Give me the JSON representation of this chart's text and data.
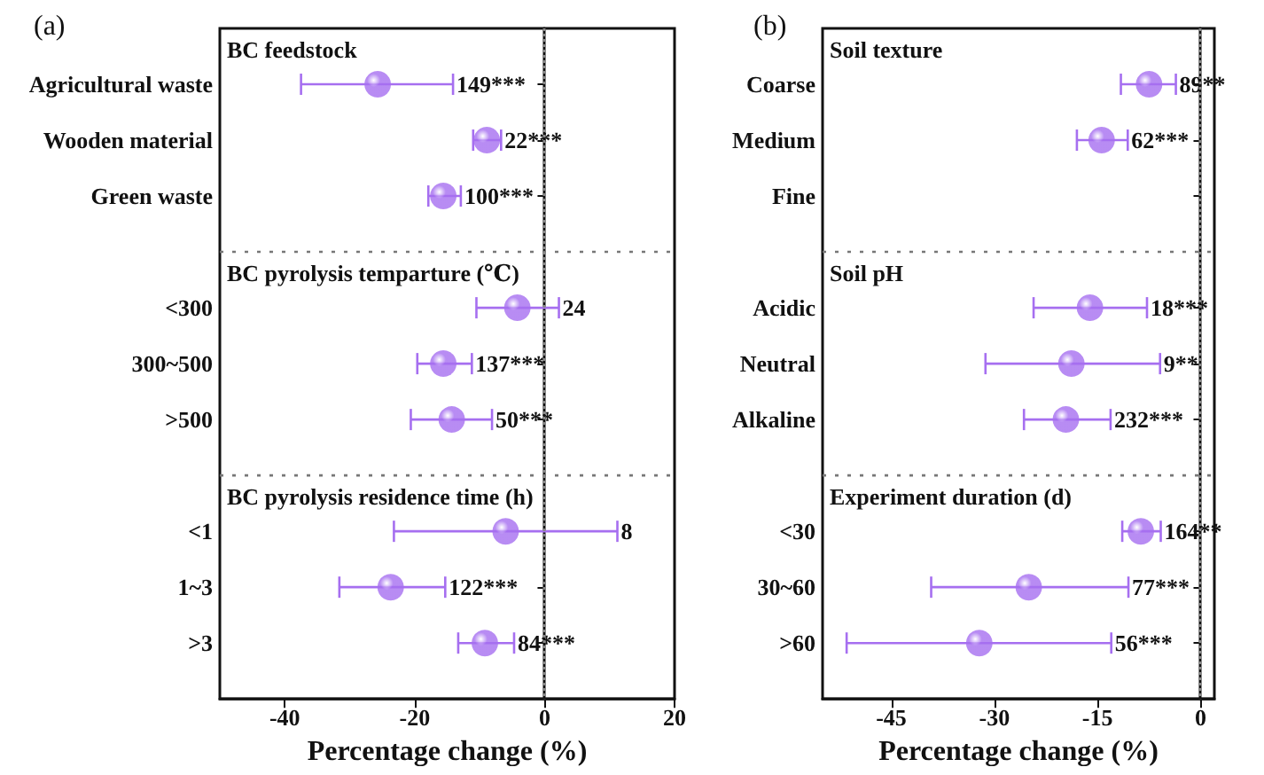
{
  "chart_data": [
    {
      "type": "scatter",
      "orientation": "horizontal",
      "title": "(a)",
      "xlabel": "Percentage change (%)",
      "categories": [
        null,
        "Agricultural waste",
        "Wooden material",
        "Green waste",
        null,
        "<300",
        "300~500",
        ">500",
        null,
        "<1",
        "1~3",
        ">3",
        null
      ],
      "annotations": [
        "BC feedstock",
        "BC pyrolysis temparture (℃)",
        "BC pyrolysis residence time (h)",
        {
          "text": "149***",
          "x": -14.1,
          "y": "Agricultural waste"
        },
        {
          "text": "22***",
          "x": -6.7,
          "y": "Wooden material"
        },
        {
          "text": "100***",
          "x": -12.9,
          "y": "Green waste"
        },
        {
          "text": "24",
          "x": 2.2,
          "y": "<300"
        },
        {
          "text": "137***",
          "x": -11.2,
          "y": "300~500"
        },
        {
          "text": "50***",
          "x": -8.1,
          "y": ">500"
        },
        {
          "text": "8",
          "x": 11.2,
          "y": "<1"
        },
        {
          "text": "122***",
          "x": -15.3,
          "y": "1~3"
        },
        {
          "text": "84***",
          "x": -4.7,
          "y": ">3"
        }
      ],
      "series": [
        {
          "color": "#a66ff0",
          "values": [
            null,
            -25.7,
            -8.9,
            -15.6,
            null,
            -4.2,
            -15.6,
            -14.3,
            null,
            -6,
            -23.7,
            -9.2,
            null
          ],
          "errors": [
            null,
            [
              -37.5,
              -14.1
            ],
            [
              -11,
              -6.7
            ],
            [
              -17.9,
              -12.9
            ],
            null,
            [
              -10.5,
              2.2
            ],
            [
              -19.6,
              -11.2
            ],
            [
              -20.6,
              -8.1
            ],
            null,
            [
              -23.2,
              11.2
            ],
            [
              -31.6,
              -15.3
            ],
            [
              -13.3,
              -4.7
            ],
            null
          ]
        }
      ],
      "xlim": [
        -50,
        20
      ],
      "xticks": [
        -40,
        -20,
        0,
        20
      ],
      "marker": "circle",
      "ref_lines": [
        {
          "axis": "x",
          "value": 0,
          "line_style": "dotted",
          "color": "#888888"
        }
      ]
    },
    {
      "type": "scatter",
      "orientation": "horizontal",
      "title": "(b)",
      "xlabel": "Percentage change (%)",
      "categories": [
        null,
        "Coarse",
        "Medium",
        "Fine",
        null,
        "Acidic",
        "Neutral",
        "Alkaline",
        null,
        "<30",
        "30~60",
        ">60",
        null
      ],
      "annotations": [
        "Soil texture",
        "Soil pH",
        "Experiment duration (d)",
        {
          "text": "89**",
          "x": -3.6,
          "y": "Coarse"
        },
        {
          "text": "62***",
          "x": -10.6,
          "y": "Medium"
        },
        {
          "text": "18***",
          "x": -7.8,
          "y": "Acidic"
        },
        {
          "text": "9**",
          "x": -5.9,
          "y": "Neutral"
        },
        {
          "text": "232***",
          "x": -13.1,
          "y": "Alkaline"
        },
        {
          "text": "164**",
          "x": -5.8,
          "y": "<30"
        },
        {
          "text": "77***",
          "x": -10.5,
          "y": "30~60"
        },
        {
          "text": "56***",
          "x": -13,
          "y": ">60"
        }
      ],
      "series": [
        {
          "color": "#a66ff0",
          "values": [
            null,
            -7.5,
            -14.4,
            null,
            null,
            -16.1,
            -18.8,
            -19.6,
            null,
            -8.7,
            -25,
            -32.2,
            null
          ],
          "errors": [
            null,
            [
              -11.6,
              -3.6
            ],
            [
              -18,
              -10.6
            ],
            null,
            null,
            [
              -24.3,
              -7.8
            ],
            [
              -31.3,
              -5.9
            ],
            [
              -25.7,
              -13.1
            ],
            null,
            [
              -11.4,
              -5.8
            ],
            [
              -39.2,
              -10.5
            ],
            [
              -51.5,
              -13
            ],
            null
          ]
        }
      ],
      "xlim": [
        -55,
        2
      ],
      "xticks": [
        -45,
        -30,
        -15,
        0
      ],
      "marker": "circle",
      "ref_lines": [
        {
          "axis": "x",
          "value": 0,
          "line_style": "dotted",
          "color": "#888888"
        }
      ]
    }
  ]
}
